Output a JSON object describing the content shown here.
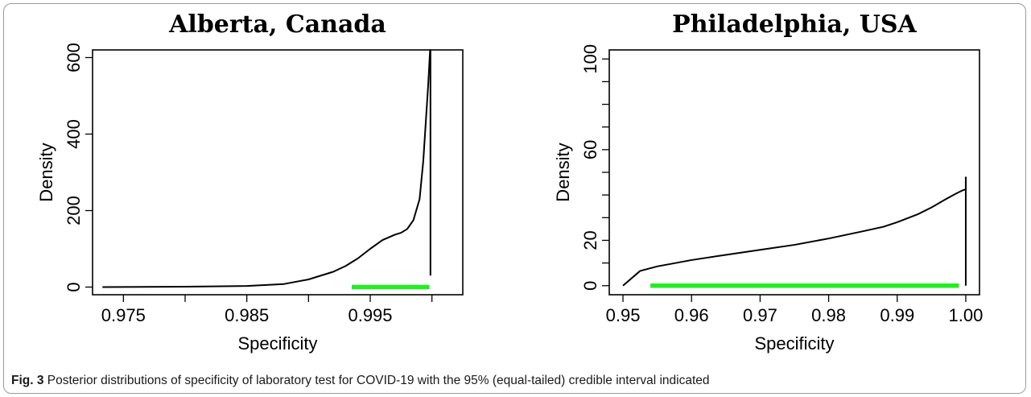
{
  "caption": {
    "label": "Fig. 3",
    "text": "Posterior distributions of specificity of laboratory test for COVID-19 with the 95% (equal-tailed) credible interval indicated"
  },
  "colors": {
    "curve": "#000000",
    "interval": "#22ee22"
  },
  "chart_data": [
    {
      "type": "line",
      "title": "Alberta, Canada",
      "xlabel": "Specificity",
      "ylabel": "Density",
      "xlim": [
        0.9725,
        1.0025
      ],
      "ylim": [
        -20,
        620
      ],
      "xticks": [
        0.975,
        0.98,
        0.985,
        0.99,
        0.995,
        1.0
      ],
      "xtick_labels": [
        "0.975",
        "",
        "0.985",
        "",
        "0.995",
        ""
      ],
      "yticks": [
        0,
        200,
        400,
        600
      ],
      "ytick_labels": [
        "0",
        "200",
        "400",
        "600"
      ],
      "grid": false,
      "series": [
        {
          "x": [
            0.9733,
            0.98,
            0.985,
            0.988,
            0.99,
            0.992,
            0.993,
            0.994,
            0.995,
            0.996,
            0.997,
            0.9975,
            0.998,
            0.9985,
            0.999,
            0.9993,
            0.9995,
            0.9997,
            0.9998,
            0.99985,
            0.99988
          ],
          "y": [
            0,
            1,
            3,
            8,
            20,
            40,
            55,
            75,
            100,
            123,
            137,
            142,
            152,
            175,
            230,
            330,
            430,
            530,
            590,
            620,
            620
          ]
        }
      ],
      "closing_line": {
        "x": 0.99988,
        "y": [
          30,
          620
        ]
      },
      "interval": [
        0.9935,
        0.9998
      ]
    },
    {
      "type": "line",
      "title": "Philadelphia, USA",
      "xlabel": "Specificity",
      "ylabel": "Density",
      "xlim": [
        0.948,
        1.002
      ],
      "ylim": [
        -4,
        104
      ],
      "xticks": [
        0.95,
        0.96,
        0.97,
        0.98,
        0.99,
        1.0
      ],
      "xtick_labels": [
        "0.95",
        "0.96",
        "0.97",
        "0.98",
        "0.99",
        "1.00"
      ],
      "yticks": [
        0,
        10,
        20,
        30,
        40,
        50,
        60,
        70,
        80,
        90,
        100
      ],
      "ytick_labels": [
        "0",
        "",
        "20",
        "",
        "",
        "",
        "60",
        "",
        "",
        "",
        "100"
      ],
      "grid": false,
      "series": [
        {
          "x": [
            0.95,
            0.9525,
            0.955,
            0.96,
            0.965,
            0.97,
            0.975,
            0.98,
            0.985,
            0.988,
            0.99,
            0.993,
            0.995,
            0.997,
            0.9985,
            0.9995,
            1.0,
            1.0
          ],
          "y": [
            0,
            6.5,
            8.5,
            11.3,
            13.6,
            15.8,
            18.0,
            20.8,
            24.0,
            26.0,
            28.0,
            31.5,
            34.5,
            38.0,
            40.5,
            42.0,
            42.5,
            48.0
          ]
        }
      ],
      "closing_line": {
        "x": 1.0,
        "y": [
          0,
          48
        ]
      },
      "interval": [
        0.954,
        0.999
      ]
    }
  ]
}
